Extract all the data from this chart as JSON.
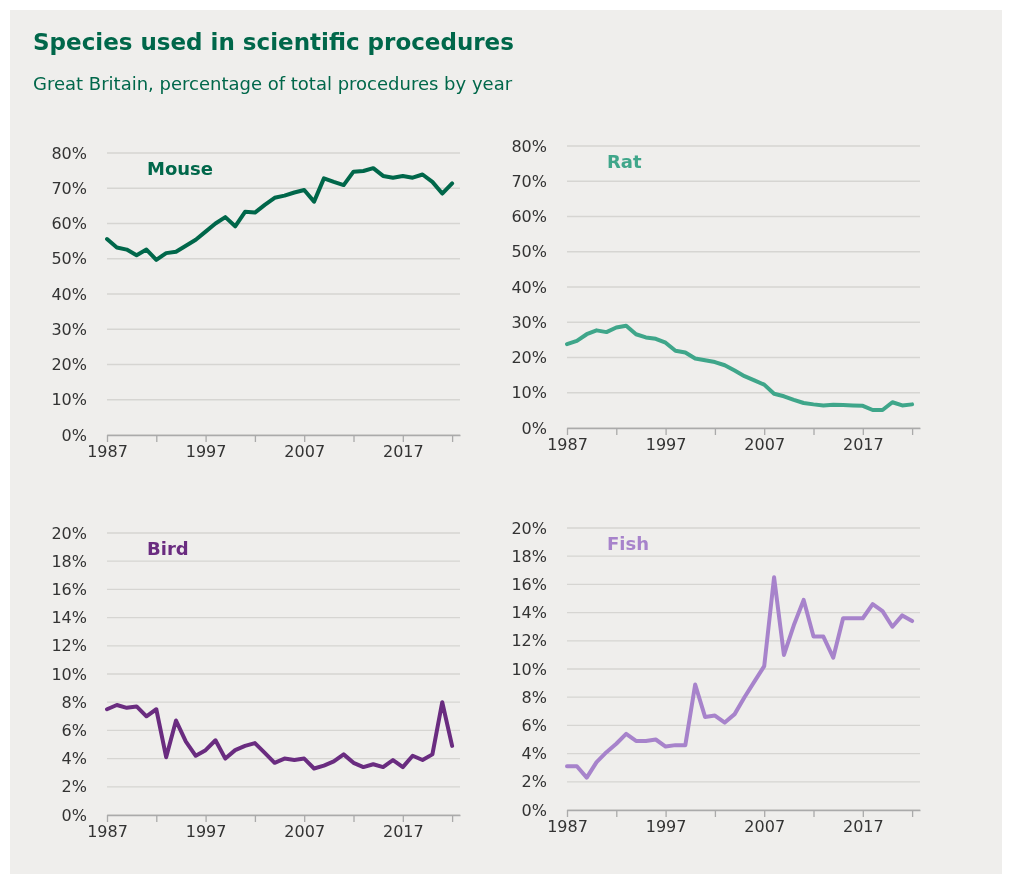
{
  "chart_data": [
    {
      "type": "line",
      "title": "Species used in scientific procedures",
      "subtitle": "Great Britain, percentage of total procedures by year",
      "x": [
        1987,
        1988,
        1989,
        1990,
        1991,
        1992,
        1993,
        1994,
        1995,
        1996,
        1997,
        1998,
        1999,
        2000,
        2001,
        2002,
        2003,
        2004,
        2005,
        2006,
        2007,
        2008,
        2009,
        2010,
        2011,
        2012,
        2013,
        2014,
        2015,
        2016,
        2017,
        2018,
        2019,
        2020,
        2021,
        2022
      ],
      "series": [
        {
          "name": "Mouse",
          "color": "#00674a",
          "values": [
            55.6,
            53.2,
            52.6,
            51.0,
            52.6,
            49.7,
            51.6,
            52.0,
            53.7,
            55.4,
            57.7,
            60.0,
            61.8,
            59.2,
            63.3,
            63.1,
            65.3,
            67.3,
            67.9,
            68.8,
            69.5,
            66.2,
            72.8,
            71.8,
            70.9,
            74.7,
            74.9,
            75.7,
            73.5,
            73.0,
            73.5,
            73.0,
            73.9,
            71.8,
            68.5,
            71.4
          ]
        }
      ],
      "xlim": [
        1987,
        2022.8
      ],
      "xticks": [
        1987,
        {
          "value": 1992,
          "label": null
        },
        1997,
        {
          "value": 2002,
          "label": null
        },
        2007,
        {
          "value": 2012,
          "label": null
        },
        2017,
        {
          "value": 2022,
          "label": null
        }
      ],
      "ylim": [
        0,
        80
      ],
      "yticks": [
        {
          "value": 0,
          "label": "0%"
        },
        {
          "value": 10,
          "label": "10%"
        },
        {
          "value": 20,
          "label": "20%"
        },
        {
          "value": 30,
          "label": "30%"
        },
        {
          "value": 40,
          "label": "40%"
        },
        {
          "value": 50,
          "label": "50%"
        },
        {
          "value": 60,
          "label": "60%"
        },
        {
          "value": 70,
          "label": "70%"
        },
        {
          "value": 80,
          "label": "80%"
        }
      ],
      "grid": "y",
      "legend": "top left",
      "marker": "none",
      "line_style": "solid"
    },
    {
      "type": "line",
      "x": [
        1987,
        1988,
        1989,
        1990,
        1991,
        1992,
        1993,
        1994,
        1995,
        1996,
        1997,
        1998,
        1999,
        2000,
        2001,
        2002,
        2003,
        2004,
        2005,
        2006,
        2007,
        2008,
        2009,
        2010,
        2011,
        2012,
        2013,
        2014,
        2015,
        2016,
        2017,
        2018,
        2019,
        2020,
        2021,
        2022
      ],
      "series": [
        {
          "name": "Rat",
          "color": "#3fa68a",
          "values": [
            23.8,
            24.7,
            26.6,
            27.7,
            27.2,
            28.5,
            29.0,
            26.6,
            25.7,
            25.3,
            24.2,
            21.9,
            21.4,
            19.7,
            19.2,
            18.7,
            17.8,
            16.3,
            14.7,
            13.5,
            12.3,
            9.7,
            9.0,
            8.0,
            7.1,
            6.7,
            6.4,
            6.6,
            6.5,
            6.4,
            6.3,
            5.1,
            5.1,
            7.3,
            6.4,
            6.7
          ]
        }
      ],
      "xlim": [
        1987,
        2022.8
      ],
      "xticks": [
        1987,
        {
          "value": 1992,
          "label": null
        },
        1997,
        {
          "value": 2002,
          "label": null
        },
        2007,
        {
          "value": 2012,
          "label": null
        },
        2017,
        {
          "value": 2022,
          "label": null
        }
      ],
      "ylim": [
        0,
        80
      ],
      "yticks": [
        {
          "value": 0,
          "label": "0%"
        },
        {
          "value": 10,
          "label": "10%"
        },
        {
          "value": 20,
          "label": "20%"
        },
        {
          "value": 30,
          "label": "30%"
        },
        {
          "value": 40,
          "label": "40%"
        },
        {
          "value": 50,
          "label": "50%"
        },
        {
          "value": 60,
          "label": "60%"
        },
        {
          "value": 70,
          "label": "70%"
        },
        {
          "value": 80,
          "label": "80%"
        }
      ],
      "grid": "y",
      "legend": "top left",
      "marker": "none",
      "line_style": "solid"
    },
    {
      "type": "line",
      "x": [
        1987,
        1988,
        1989,
        1990,
        1991,
        1992,
        1993,
        1994,
        1995,
        1996,
        1997,
        1998,
        1999,
        2000,
        2001,
        2002,
        2003,
        2004,
        2005,
        2006,
        2007,
        2008,
        2009,
        2010,
        2011,
        2012,
        2013,
        2014,
        2015,
        2016,
        2017,
        2018,
        2019,
        2020,
        2021,
        2022
      ],
      "series": [
        {
          "name": "Bird",
          "color": "#6a2c80",
          "values": [
            7.5,
            7.8,
            7.6,
            7.7,
            7.0,
            7.5,
            4.1,
            6.7,
            5.2,
            4.2,
            4.6,
            5.3,
            4.0,
            4.6,
            4.9,
            5.1,
            4.4,
            3.7,
            4.0,
            3.9,
            4.0,
            3.3,
            3.5,
            3.8,
            4.3,
            3.7,
            3.4,
            3.6,
            3.4,
            3.9,
            3.4,
            4.2,
            3.9,
            4.3,
            8.0,
            4.9
          ]
        }
      ],
      "xlim": [
        1987,
        2022.8
      ],
      "xticks": [
        1987,
        {
          "value": 1992,
          "label": null
        },
        1997,
        {
          "value": 2002,
          "label": null
        },
        2007,
        {
          "value": 2012,
          "label": null
        },
        2017,
        {
          "value": 2022,
          "label": null
        }
      ],
      "ylim": [
        0,
        20
      ],
      "yticks": [
        {
          "value": 0,
          "label": "0%"
        },
        {
          "value": 2,
          "label": "2%"
        },
        {
          "value": 4,
          "label": "4%"
        },
        {
          "value": 6,
          "label": "6%"
        },
        {
          "value": 8,
          "label": "8%"
        },
        {
          "value": 10,
          "label": "10%"
        },
        {
          "value": 12,
          "label": "12%"
        },
        {
          "value": 14,
          "label": "14%"
        },
        {
          "value": 16,
          "label": "16%"
        },
        {
          "value": 18,
          "label": "18%"
        },
        {
          "value": 20,
          "label": "20%"
        }
      ],
      "grid": "y",
      "legend": "top left",
      "marker": "none",
      "line_style": "solid"
    },
    {
      "type": "line",
      "x": [
        1987,
        1988,
        1989,
        1990,
        1991,
        1992,
        1993,
        1994,
        1995,
        1996,
        1997,
        1998,
        1999,
        2000,
        2001,
        2002,
        2003,
        2004,
        2005,
        2006,
        2007,
        2008,
        2009,
        2010,
        2011,
        2012,
        2013,
        2014,
        2015,
        2016,
        2017,
        2018,
        2019,
        2020,
        2021,
        2022
      ],
      "series": [
        {
          "name": "Fish",
          "color": "#a783cb",
          "values": [
            3.1,
            3.1,
            2.3,
            3.4,
            4.1,
            4.7,
            5.4,
            4.9,
            4.9,
            5.0,
            4.5,
            4.6,
            4.6,
            8.9,
            6.6,
            6.7,
            6.2,
            6.8,
            8.0,
            9.1,
            10.2,
            16.5,
            11.0,
            13.1,
            14.9,
            12.3,
            12.3,
            10.8,
            13.6,
            13.6,
            13.6,
            14.6,
            14.1,
            13.0,
            13.8,
            13.4
          ]
        }
      ],
      "xlim": [
        1987,
        2022.8
      ],
      "xticks": [
        1987,
        {
          "value": 1992,
          "label": null
        },
        1997,
        {
          "value": 2002,
          "label": null
        },
        2007,
        {
          "value": 2012,
          "label": null
        },
        2017,
        {
          "value": 2022,
          "label": null
        }
      ],
      "ylim": [
        0,
        20
      ],
      "yticks": [
        {
          "value": 0,
          "label": "0%"
        },
        {
          "value": 2,
          "label": "2%"
        },
        {
          "value": 4,
          "label": "4%"
        },
        {
          "value": 6,
          "label": "6%"
        },
        {
          "value": 8,
          "label": "8%"
        },
        {
          "value": 10,
          "label": "10%"
        },
        {
          "value": 12,
          "label": "12%"
        },
        {
          "value": 14,
          "label": "14%"
        },
        {
          "value": 16,
          "label": "16%"
        },
        {
          "value": 18,
          "label": "18%"
        },
        {
          "value": 20,
          "label": "20%"
        }
      ],
      "grid": "y",
      "legend": "top left",
      "marker": "none",
      "line_style": "solid"
    }
  ]
}
